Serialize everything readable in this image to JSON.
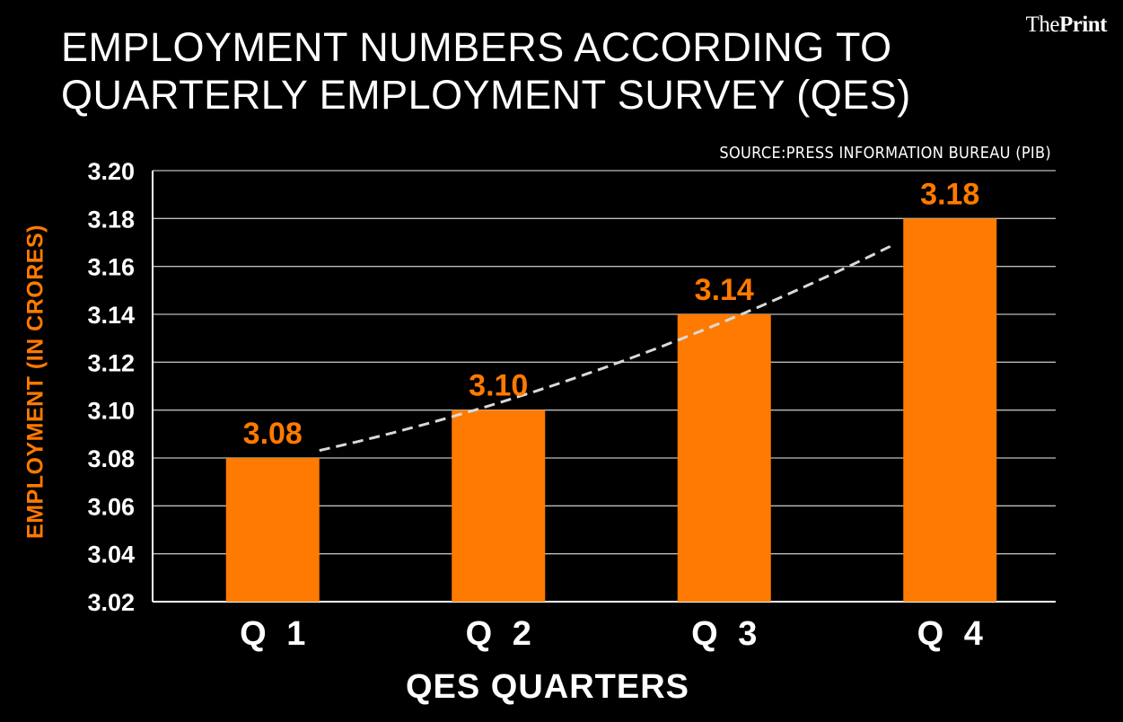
{
  "brand": {
    "prefix": "The",
    "name": "Print"
  },
  "title_lines": [
    "EMPLOYMENT NUMBERS ACCORDING TO",
    "QUARTERLY EMPLOYMENT SURVEY (QES)"
  ],
  "source": "SOURCE:PRESS INFORMATION BUREAU (PIB)",
  "colors": {
    "bar": "#ff7a00",
    "background": "#000000",
    "text": "#ffffff",
    "grid": "#bdbdbd",
    "trend": "#d9d9d9"
  },
  "chart_data": {
    "type": "bar",
    "title": "EMPLOYMENT NUMBERS ACCORDING TO QUARTERLY EMPLOYMENT SURVEY (QES)",
    "categories": [
      "Q 1",
      "Q 2",
      "Q 3",
      "Q 4"
    ],
    "values": [
      3.08,
      3.1,
      3.14,
      3.18
    ],
    "value_labels": [
      "3.08",
      "3.10",
      "3.14",
      "3.18"
    ],
    "xlabel": "QES QUARTERS",
    "ylabel": "EMPLOYMENT (IN CRORES)",
    "ylim": [
      3.02,
      3.2
    ],
    "yticks": [
      "3.20",
      "3.18",
      "3.16",
      "3.14",
      "3.12",
      "3.10",
      "3.08",
      "3.06",
      "3.04",
      "3.02"
    ],
    "ytick_values": [
      3.2,
      3.18,
      3.16,
      3.14,
      3.12,
      3.1,
      3.08,
      3.06,
      3.04,
      3.02
    ],
    "grid": true,
    "trendline": {
      "style": "dashed",
      "curve": "polynomial"
    }
  }
}
